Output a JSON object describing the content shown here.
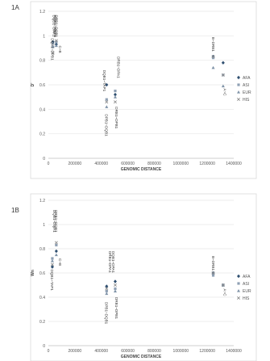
{
  "panels": [
    {
      "label": "1A"
    },
    {
      "label": "1B"
    }
  ],
  "chart_data": [
    {
      "type": "scatter",
      "panel": "1A",
      "xlabel": "GENOMIC DISTANCE",
      "ylabel": "D'",
      "xlim": [
        0,
        1400000
      ],
      "ylim": [
        0,
        1.2
      ],
      "xticks": [
        "0",
        "200000",
        "400000",
        "600000",
        "800000",
        "1000000",
        "1200000",
        "1400000"
      ],
      "yticks": [
        "0",
        "0.2",
        "0.4",
        "0.6",
        "0.8",
        "1",
        "1.2"
      ],
      "legend_position": "right",
      "series": [
        {
          "name": "AFA",
          "marker": "diamond",
          "color": "#2f4f70",
          "points": [
            [
              35000,
              0.95
            ],
            [
              60000,
              0.93
            ],
            [
              440000,
              0.6
            ],
            [
              505000,
              0.52
            ],
            [
              1245000,
              0.83
            ],
            [
              1320000,
              0.78
            ]
          ]
        },
        {
          "name": "ASI",
          "marker": "square",
          "color": "#8fa0b4",
          "points": [
            [
              35000,
              0.91
            ],
            [
              60000,
              0.95
            ],
            [
              440000,
              0.48
            ],
            [
              505000,
              0.55
            ],
            [
              1245000,
              0.82
            ],
            [
              1320000,
              0.68
            ]
          ]
        },
        {
          "name": "EUR",
          "marker": "triangle",
          "color": "#7f93a8",
          "points": [
            [
              35000,
              0.94
            ],
            [
              60000,
              0.92
            ],
            [
              440000,
              0.42
            ],
            [
              505000,
              0.5
            ],
            [
              1245000,
              0.74
            ],
            [
              1320000,
              0.59
            ]
          ]
        },
        {
          "name": "HIS",
          "marker": "x",
          "color": "#8a8a8a",
          "points": [
            [
              35000,
              0.86
            ],
            [
              60000,
              0.96
            ],
            [
              440000,
              0.46
            ],
            [
              505000,
              0.46
            ],
            [
              1245000,
              0.83
            ],
            [
              1320000,
              0.68
            ]
          ]
        }
      ],
      "annotations": [
        {
          "text": "DQA1~DPB1",
          "x": 22000,
          "y": 0.98
        },
        {
          "text": "DQB1~DPA1",
          "x": 32000,
          "y": 1.17
        },
        {
          "text": "DQA1~DQB1",
          "x": 42000,
          "y": 1.17
        },
        {
          "text": "DRB1~DQB1",
          "x": 52000,
          "y": 1.17
        },
        {
          "text": "C~B",
          "x": 78000,
          "y": 0.92
        },
        {
          "text": "DQB1~TAP1",
          "x": 415000,
          "y": 0.72
        },
        {
          "text": "DPB1~DQB1",
          "x": 428000,
          "y": 0.36
        },
        {
          "text": "DRB1~DPB1",
          "x": 505000,
          "y": 0.42
        },
        {
          "text": "DRB1~DPA1",
          "x": 520000,
          "y": 0.83
        },
        {
          "text": "B~DRB1",
          "x": 1235000,
          "y": 0.99
        },
        {
          "text": "A~C",
          "x": 1325000,
          "y": 0.57
        }
      ]
    },
    {
      "type": "scatter",
      "panel": "1B",
      "xlabel": "GENOMIC DISTANCE",
      "ylabel": "Wn",
      "xlim": [
        0,
        1400000
      ],
      "ylim": [
        0,
        1.2
      ],
      "xticks": [
        "0",
        "200000",
        "400000",
        "600000",
        "800000",
        "1000000",
        "1200000",
        "1400000"
      ],
      "yticks": [
        "0",
        "0.2",
        "0.4",
        "0.6",
        "0.8",
        "1",
        "1.2"
      ],
      "legend_position": "right",
      "series": [
        {
          "name": "AFA",
          "marker": "diamond",
          "color": "#2f4f70",
          "points": [
            [
              30000,
              0.65
            ],
            [
              60000,
              0.78
            ],
            [
              440000,
              0.49
            ],
            [
              505000,
              0.53
            ],
            [
              1245000,
              0.6
            ],
            [
              1320000,
              0.5
            ]
          ]
        },
        {
          "name": "ASI",
          "marker": "square",
          "color": "#8fa0b4",
          "points": [
            [
              30000,
              0.72
            ],
            [
              60000,
              0.83
            ],
            [
              440000,
              0.45
            ],
            [
              505000,
              0.47
            ],
            [
              1245000,
              0.58
            ],
            [
              1320000,
              0.5
            ]
          ]
        },
        {
          "name": "EUR",
          "marker": "triangle",
          "color": "#7f93a8",
          "points": [
            [
              30000,
              0.7
            ],
            [
              60000,
              0.75
            ],
            [
              440000,
              0.43
            ],
            [
              505000,
              0.45
            ],
            [
              1245000,
              0.6
            ],
            [
              1320000,
              0.5
            ]
          ]
        },
        {
          "name": "HIS",
          "marker": "x",
          "color": "#8a8a8a",
          "points": [
            [
              30000,
              0.67
            ],
            [
              60000,
              0.85
            ],
            [
              440000,
              0.47
            ],
            [
              505000,
              0.5
            ],
            [
              1245000,
              0.6
            ],
            [
              1320000,
              0.5
            ]
          ]
        }
      ],
      "annotations": [
        {
          "text": "DQB1~TAP1",
          "x": 18000,
          "y": 0.63
        },
        {
          "text": "DQB1~DQA1",
          "x": 38000,
          "y": 1.12
        },
        {
          "text": "DRB1~DQB1",
          "x": 48000,
          "y": 1.12
        },
        {
          "text": "C~B",
          "x": 78000,
          "y": 0.72
        },
        {
          "text": "DPB1~DQB1",
          "x": 428000,
          "y": 0.36
        },
        {
          "text": "DRB1~DPA1",
          "x": 458000,
          "y": 0.78
        },
        {
          "text": "DQB1~DPA1",
          "x": 480000,
          "y": 0.78
        },
        {
          "text": "DRB1~DPB1",
          "x": 505000,
          "y": 0.4
        },
        {
          "text": "B~DRB1",
          "x": 1235000,
          "y": 0.74
        },
        {
          "text": "A~C",
          "x": 1325000,
          "y": 0.47
        }
      ]
    }
  ]
}
